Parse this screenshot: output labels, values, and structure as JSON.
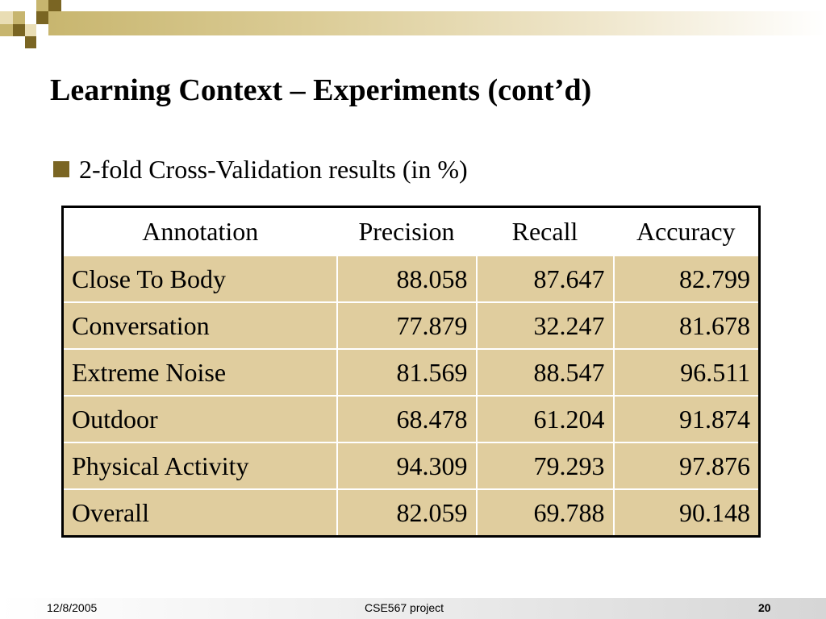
{
  "slide": {
    "title": "Learning Context – Experiments (cont’d)",
    "bullet": "2-fold Cross-Validation results (in %)"
  },
  "table": {
    "headers": [
      "Annotation",
      "Precision",
      "Recall",
      "Accuracy"
    ],
    "rows": [
      [
        "Close To Body",
        "88.058",
        "87.647",
        "82.799"
      ],
      [
        "Conversation",
        "77.879",
        "32.247",
        "81.678"
      ],
      [
        "Extreme Noise",
        "81.569",
        "88.547",
        "96.511"
      ],
      [
        "Outdoor",
        "68.478",
        "61.204",
        "91.874"
      ],
      [
        "Physical Activity",
        "94.309",
        "79.293",
        "97.876"
      ],
      [
        "Overall",
        "82.059",
        "69.788",
        "90.148"
      ]
    ]
  },
  "footer": {
    "date": "12/8/2005",
    "title": "CSE567 project",
    "page": "20"
  },
  "colors": {
    "accent_dark": "#7a6523",
    "accent_light": "#e0cd9e",
    "band_gold": "#c8b66f"
  }
}
